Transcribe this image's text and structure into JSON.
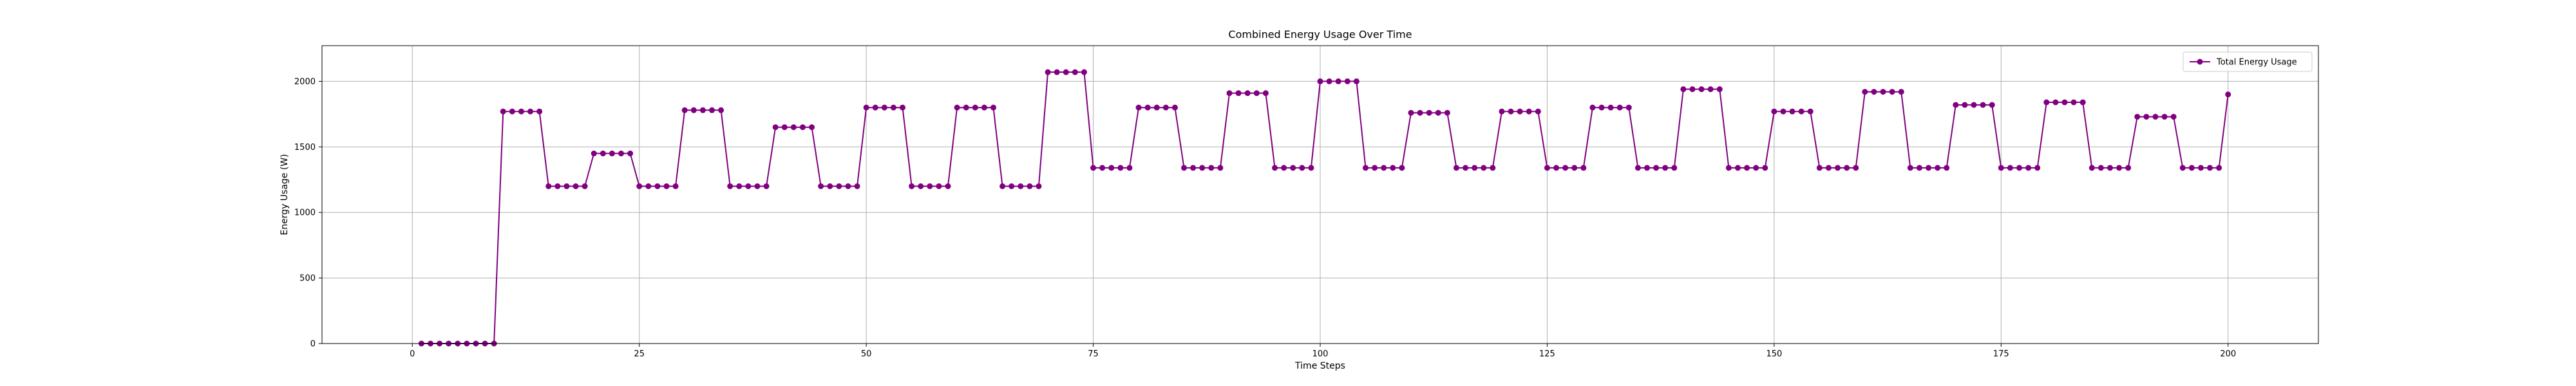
{
  "chart_data": {
    "type": "line",
    "title": "Combined Energy Usage Over Time",
    "xlabel": "Time Steps",
    "ylabel": "Energy Usage (W)",
    "xlim": [
      -9.95,
      209.95
    ],
    "ylim": [
      0,
      2272
    ],
    "xticks": [
      0,
      25,
      50,
      75,
      100,
      125,
      150,
      175,
      200
    ],
    "yticks": [
      0,
      500,
      1000,
      1500,
      2000
    ],
    "grid": true,
    "legend": "top-right",
    "series": [
      {
        "name": "Total Energy Usage",
        "color": "#800080",
        "marker": "circle",
        "x": [
          1,
          2,
          3,
          4,
          5,
          6,
          7,
          8,
          9,
          10,
          11,
          12,
          13,
          14,
          15,
          16,
          17,
          18,
          19,
          20,
          21,
          22,
          23,
          24,
          25,
          26,
          27,
          28,
          29,
          30,
          31,
          32,
          33,
          34,
          35,
          36,
          37,
          38,
          39,
          40,
          41,
          42,
          43,
          44,
          45,
          46,
          47,
          48,
          49,
          50,
          51,
          52,
          53,
          54,
          55,
          56,
          57,
          58,
          59,
          60,
          61,
          62,
          63,
          64,
          65,
          66,
          67,
          68,
          69,
          70,
          71,
          72,
          73,
          74,
          75,
          76,
          77,
          78,
          79,
          80,
          81,
          82,
          83,
          84,
          85,
          86,
          87,
          88,
          89,
          90,
          91,
          92,
          93,
          94,
          95,
          96,
          97,
          98,
          99,
          100,
          101,
          102,
          103,
          104,
          105,
          106,
          107,
          108,
          109,
          110,
          111,
          112,
          113,
          114,
          115,
          116,
          117,
          118,
          119,
          120,
          121,
          122,
          123,
          124,
          125,
          126,
          127,
          128,
          129,
          130,
          131,
          132,
          133,
          134,
          135,
          136,
          137,
          138,
          139,
          140,
          141,
          142,
          143,
          144,
          145,
          146,
          147,
          148,
          149,
          150,
          151,
          152,
          153,
          154,
          155,
          156,
          157,
          158,
          159,
          160,
          161,
          162,
          163,
          164,
          165,
          166,
          167,
          168,
          169,
          170,
          171,
          172,
          173,
          174,
          175,
          176,
          177,
          178,
          179,
          180,
          181,
          182,
          183,
          184,
          185,
          186,
          187,
          188,
          189,
          190,
          191,
          192,
          193,
          194,
          195,
          196,
          197,
          198,
          199,
          200
        ],
        "values": [
          0,
          0,
          0,
          0,
          0,
          0,
          0,
          0,
          0,
          1770,
          1770,
          1770,
          1770,
          1770,
          1200,
          1200,
          1200,
          1200,
          1200,
          1450,
          1450,
          1450,
          1450,
          1450,
          1200,
          1200,
          1200,
          1200,
          1200,
          1780,
          1780,
          1780,
          1780,
          1780,
          1200,
          1200,
          1200,
          1200,
          1200,
          1650,
          1650,
          1650,
          1650,
          1650,
          1200,
          1200,
          1200,
          1200,
          1200,
          1800,
          1800,
          1800,
          1800,
          1800,
          1200,
          1200,
          1200,
          1200,
          1200,
          1800,
          1800,
          1800,
          1800,
          1800,
          1200,
          1200,
          1200,
          1200,
          1200,
          2070,
          2070,
          2070,
          2070,
          2070,
          1340,
          1340,
          1340,
          1340,
          1340,
          1800,
          1800,
          1800,
          1800,
          1800,
          1340,
          1340,
          1340,
          1340,
          1340,
          1910,
          1910,
          1910,
          1910,
          1910,
          1340,
          1340,
          1340,
          1340,
          1340,
          2000,
          2000,
          2000,
          2000,
          2000,
          1340,
          1340,
          1340,
          1340,
          1340,
          1760,
          1760,
          1760,
          1760,
          1760,
          1340,
          1340,
          1340,
          1340,
          1340,
          1770,
          1770,
          1770,
          1770,
          1770,
          1340,
          1340,
          1340,
          1340,
          1340,
          1800,
          1800,
          1800,
          1800,
          1800,
          1340,
          1340,
          1340,
          1340,
          1340,
          1940,
          1940,
          1940,
          1940,
          1940,
          1340,
          1340,
          1340,
          1340,
          1340,
          1770,
          1770,
          1770,
          1770,
          1770,
          1340,
          1340,
          1340,
          1340,
          1340,
          1920,
          1920,
          1920,
          1920,
          1920,
          1340,
          1340,
          1340,
          1340,
          1340,
          1820,
          1820,
          1820,
          1820,
          1820,
          1340,
          1340,
          1340,
          1340,
          1340,
          1840,
          1840,
          1840,
          1840,
          1840,
          1340,
          1340,
          1340,
          1340,
          1340,
          1730,
          1730,
          1730,
          1730,
          1730,
          1340,
          1340,
          1340,
          1340,
          1340,
          1900
        ]
      }
    ]
  }
}
